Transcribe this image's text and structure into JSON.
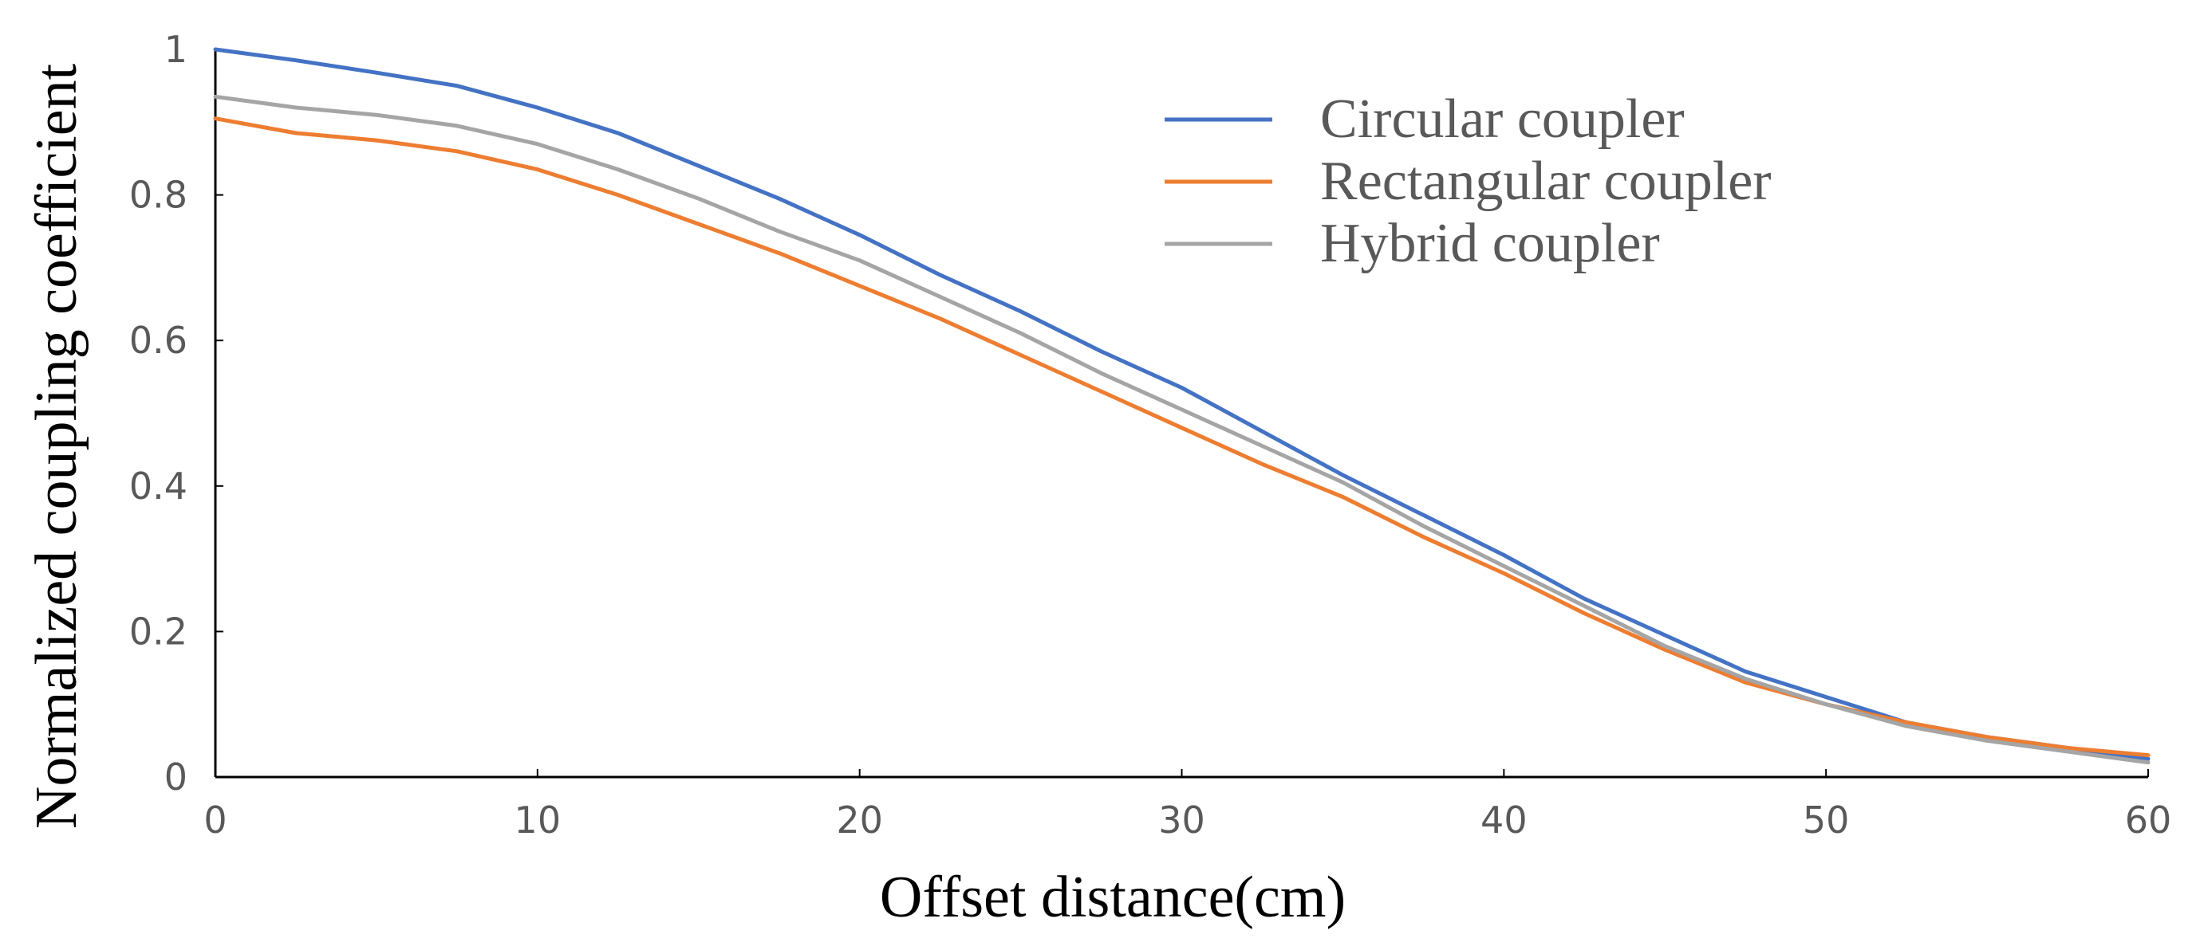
{
  "chart_data": {
    "type": "line",
    "title": "",
    "xlabel": "Offset distance(cm)",
    "ylabel": "Normalized coupling coefficient",
    "xlim": [
      0,
      60
    ],
    "ylim": [
      0,
      1
    ],
    "x_ticks": [
      0,
      10,
      20,
      30,
      40,
      50,
      60
    ],
    "x_tick_labels": [
      "0",
      "10",
      "20",
      "30",
      "40",
      "50",
      "60"
    ],
    "y_ticks": [
      0,
      0.2,
      0.4,
      0.6,
      0.8,
      1
    ],
    "y_tick_labels": [
      "0",
      "0.2",
      "0.4",
      "0.6",
      "0.8",
      "1"
    ],
    "grid": false,
    "legend_position": "top-right",
    "series": [
      {
        "name": "Circular coupler",
        "color": "#4472C4",
        "x": [
          0,
          2.5,
          5,
          7.5,
          10,
          12.5,
          15,
          17.5,
          20,
          22.5,
          25,
          27.5,
          30,
          32.5,
          35,
          37.5,
          40,
          42.5,
          45,
          47.5,
          50,
          52.5,
          55,
          57.5,
          60
        ],
        "y": [
          1.0,
          0.985,
          0.968,
          0.95,
          0.92,
          0.885,
          0.84,
          0.795,
          0.745,
          0.69,
          0.64,
          0.585,
          0.535,
          0.475,
          0.415,
          0.36,
          0.305,
          0.245,
          0.195,
          0.145,
          0.11,
          0.075,
          0.055,
          0.04,
          0.025
        ]
      },
      {
        "name": "Rectangular coupler",
        "color": "#ED7D31",
        "x": [
          0,
          2.5,
          5,
          7.5,
          10,
          12.5,
          15,
          17.5,
          20,
          22.5,
          25,
          27.5,
          30,
          32.5,
          35,
          37.5,
          40,
          42.5,
          45,
          47.5,
          50,
          52.5,
          55,
          57.5,
          60
        ],
        "y": [
          0.905,
          0.885,
          0.875,
          0.86,
          0.835,
          0.8,
          0.76,
          0.72,
          0.675,
          0.63,
          0.58,
          0.53,
          0.48,
          0.43,
          0.385,
          0.33,
          0.28,
          0.225,
          0.175,
          0.13,
          0.1,
          0.075,
          0.055,
          0.04,
          0.03
        ]
      },
      {
        "name": "Hybrid coupler",
        "color": "#A5A5A5",
        "x": [
          0,
          2.5,
          5,
          7.5,
          10,
          12.5,
          15,
          17.5,
          20,
          22.5,
          25,
          27.5,
          30,
          32.5,
          35,
          37.5,
          40,
          42.5,
          45,
          47.5,
          50,
          52.5,
          55,
          57.5,
          60
        ],
        "y": [
          0.935,
          0.92,
          0.91,
          0.895,
          0.87,
          0.835,
          0.795,
          0.75,
          0.71,
          0.66,
          0.61,
          0.555,
          0.505,
          0.455,
          0.405,
          0.345,
          0.29,
          0.235,
          0.18,
          0.135,
          0.1,
          0.07,
          0.05,
          0.035,
          0.02
        ]
      }
    ]
  }
}
